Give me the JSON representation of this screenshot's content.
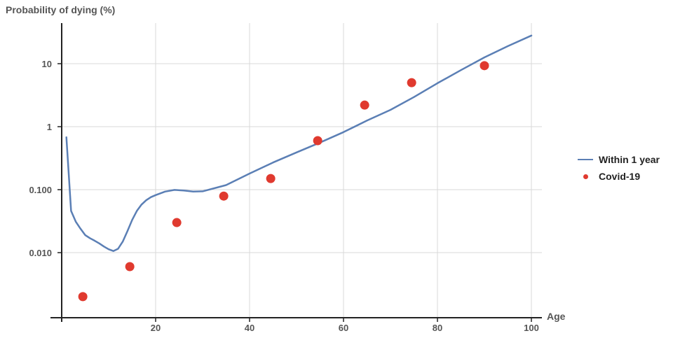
{
  "chart_data": {
    "type": "line",
    "ylabel": "Probability of dying (%)",
    "xlabel": "Age",
    "yscale": "log",
    "xlim": [
      -2,
      102
    ],
    "ylim": [
      0.00055,
      38
    ],
    "grid": true,
    "legend_position": "right",
    "x_ticks": [
      {
        "value": 20,
        "label": "20"
      },
      {
        "value": 40,
        "label": "40"
      },
      {
        "value": 60,
        "label": "60"
      },
      {
        "value": 80,
        "label": "80"
      },
      {
        "value": 100,
        "label": "100"
      }
    ],
    "y_ticks": [
      {
        "value": 10,
        "label": "10"
      },
      {
        "value": 1,
        "label": "1"
      },
      {
        "value": 0.1,
        "label": "0.100"
      },
      {
        "value": 0.01,
        "label": "0.010"
      }
    ],
    "series": [
      {
        "name": "Within 1 year",
        "type": "line",
        "color": "#5b7fb5",
        "x": [
          1,
          2,
          3,
          4,
          5,
          6,
          7,
          8,
          9,
          10,
          11,
          12,
          13,
          14,
          15,
          16,
          17,
          18,
          19,
          20,
          22,
          24,
          26,
          28,
          30,
          35,
          40,
          45,
          50,
          55,
          60,
          65,
          70,
          75,
          80,
          85,
          90,
          95,
          100
        ],
        "y": [
          0.68,
          0.046,
          0.031,
          0.024,
          0.019,
          0.017,
          0.0155,
          0.014,
          0.0125,
          0.0113,
          0.0106,
          0.0115,
          0.015,
          0.022,
          0.033,
          0.046,
          0.058,
          0.068,
          0.076,
          0.082,
          0.093,
          0.099,
          0.097,
          0.093,
          0.094,
          0.118,
          0.18,
          0.27,
          0.39,
          0.56,
          0.82,
          1.25,
          1.85,
          2.95,
          4.9,
          7.9,
          12.6,
          19.0,
          28.0
        ]
      },
      {
        "name": "Covid-19",
        "type": "scatter",
        "color": "#e03a2f",
        "x": [
          4.5,
          14.5,
          24.5,
          34.5,
          44.5,
          54.5,
          64.5,
          74.5,
          90
        ],
        "y": [
          0.002,
          0.006,
          0.03,
          0.079,
          0.15,
          0.6,
          2.2,
          5.0,
          9.3
        ]
      }
    ]
  }
}
